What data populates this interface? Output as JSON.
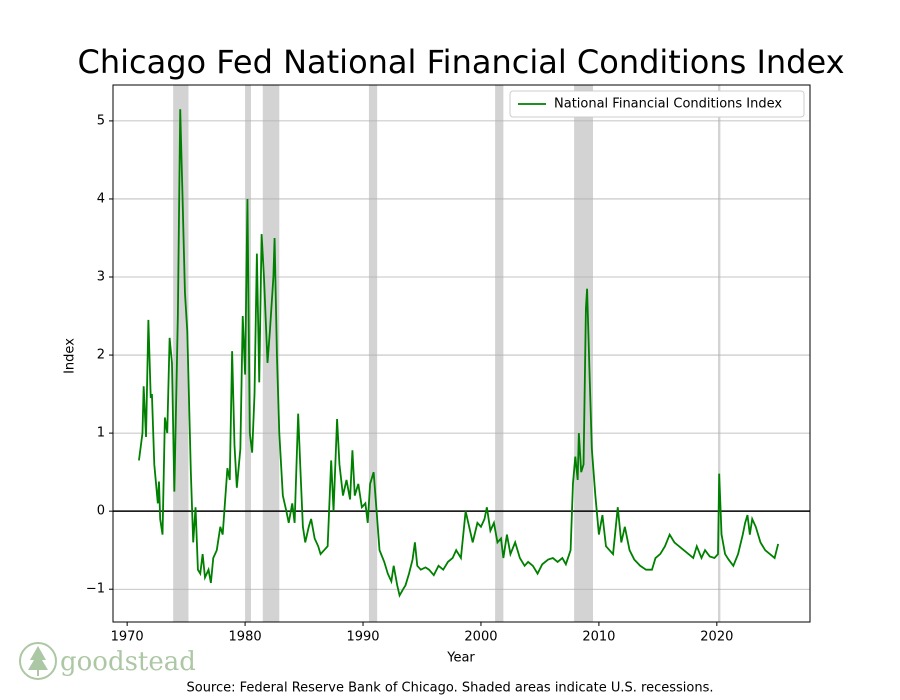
{
  "chart_data": {
    "type": "line",
    "title": "Chicago Fed National Financial Conditions Index",
    "xlabel": "Year",
    "ylabel": "Index",
    "source": "Source: Federal Reserve Bank of Chicago. Shaded areas indicate U.S. recessions.",
    "logo_text": "goodstead",
    "xlim": [
      1968.8,
      2027.9
    ],
    "ylim": [
      -1.42,
      5.46
    ],
    "xticks": [
      1970,
      1980,
      1990,
      2000,
      2010,
      2020
    ],
    "yticks": [
      {
        "value": -1,
        "label": "−1"
      },
      0,
      1,
      2,
      3,
      4,
      5
    ],
    "grid": true,
    "legend": "upper right",
    "zero_line": true,
    "recession_color": "#d3d3d3",
    "recessions": [
      [
        1973.9,
        1975.2
      ],
      [
        1980.0,
        1980.5
      ],
      [
        1981.5,
        1982.9
      ],
      [
        1990.5,
        1991.2
      ],
      [
        2001.2,
        2001.9
      ],
      [
        2007.9,
        2009.5
      ],
      [
        2020.1,
        2020.3
      ]
    ],
    "x": [
      1971.0,
      1971.3,
      1971.4,
      1971.6,
      1971.8,
      1972.0,
      1972.1,
      1972.3,
      1972.6,
      1972.7,
      1972.8,
      1973.0,
      1973.2,
      1973.4,
      1973.6,
      1973.8,
      1974.0,
      1974.3,
      1974.5,
      1974.7,
      1974.9,
      1975.1,
      1975.4,
      1975.6,
      1975.8,
      1976.0,
      1976.2,
      1976.4,
      1976.6,
      1976.9,
      1977.1,
      1977.3,
      1977.6,
      1977.9,
      1978.1,
      1978.5,
      1978.7,
      1978.9,
      1979.1,
      1979.3,
      1979.6,
      1979.8,
      1980.0,
      1980.2,
      1980.4,
      1980.6,
      1980.8,
      1981.0,
      1981.2,
      1981.4,
      1981.6,
      1981.9,
      1982.1,
      1982.4,
      1982.5,
      1982.7,
      1982.9,
      1983.2,
      1983.5,
      1983.7,
      1984.0,
      1984.2,
      1984.5,
      1984.7,
      1984.9,
      1985.1,
      1985.4,
      1985.6,
      1985.9,
      1986.2,
      1986.4,
      1986.7,
      1987.0,
      1987.3,
      1987.5,
      1987.8,
      1988.0,
      1988.3,
      1988.6,
      1988.9,
      1989.1,
      1989.3,
      1989.6,
      1989.9,
      1990.2,
      1990.4,
      1990.6,
      1990.9,
      1991.1,
      1991.4,
      1991.8,
      1992.1,
      1992.4,
      1992.6,
      1992.9,
      1993.1,
      1993.4,
      1993.6,
      1993.9,
      1994.2,
      1994.4,
      1994.6,
      1994.9,
      1995.3,
      1995.6,
      1996.0,
      1996.4,
      1996.8,
      1997.2,
      1997.6,
      1997.9,
      1998.3,
      1998.7,
      1999.0,
      1999.3,
      1999.7,
      2000.0,
      2000.3,
      2000.5,
      2000.8,
      2001.1,
      2001.4,
      2001.7,
      2001.9,
      2002.2,
      2002.5,
      2002.9,
      2003.3,
      2003.7,
      2004.0,
      2004.4,
      2004.8,
      2005.2,
      2005.7,
      2006.1,
      2006.5,
      2006.9,
      2007.2,
      2007.6,
      2007.8,
      2008.0,
      2008.2,
      2008.3,
      2008.5,
      2008.7,
      2008.9,
      2009.0,
      2009.2,
      2009.4,
      2009.7,
      2010.0,
      2010.3,
      2010.6,
      2010.9,
      2011.2,
      2011.6,
      2011.9,
      2012.2,
      2012.6,
      2013.0,
      2013.5,
      2014.0,
      2014.5,
      2014.8,
      2015.2,
      2015.6,
      2016.0,
      2016.4,
      2016.8,
      2017.2,
      2017.6,
      2018.0,
      2018.3,
      2018.7,
      2019.0,
      2019.4,
      2019.8,
      2020.1,
      2020.2,
      2020.4,
      2020.7,
      2021.0,
      2021.4,
      2021.8,
      2022.2,
      2022.4,
      2022.6,
      2022.8,
      2023.0,
      2023.3,
      2023.7,
      2024.1,
      2024.5,
      2024.9,
      2025.2
    ],
    "series": [
      {
        "name": "National Financial Conditions Index",
        "color": "#008000",
        "values": [
          0.65,
          1.0,
          1.6,
          0.95,
          2.45,
          1.45,
          1.5,
          0.6,
          0.1,
          0.38,
          -0.1,
          -0.3,
          1.2,
          1.0,
          2.22,
          1.9,
          0.25,
          2.5,
          5.15,
          4.0,
          2.8,
          2.3,
          0.5,
          -0.4,
          0.05,
          -0.75,
          -0.8,
          -0.55,
          -0.85,
          -0.75,
          -0.92,
          -0.6,
          -0.5,
          -0.2,
          -0.3,
          0.55,
          0.4,
          2.05,
          0.85,
          0.3,
          0.8,
          2.5,
          1.75,
          4.0,
          1.0,
          0.75,
          1.5,
          3.3,
          1.65,
          3.55,
          3.0,
          1.9,
          2.3,
          3.0,
          3.5,
          2.0,
          1.0,
          0.2,
          0.0,
          -0.15,
          0.1,
          -0.15,
          1.25,
          0.5,
          -0.2,
          -0.4,
          -0.2,
          -0.1,
          -0.35,
          -0.45,
          -0.55,
          -0.5,
          -0.45,
          0.65,
          0.0,
          1.18,
          0.6,
          0.2,
          0.4,
          0.15,
          0.78,
          0.2,
          0.35,
          0.05,
          0.1,
          -0.15,
          0.35,
          0.5,
          0.1,
          -0.5,
          -0.65,
          -0.8,
          -0.9,
          -0.7,
          -0.95,
          -1.08,
          -1.0,
          -0.95,
          -0.8,
          -0.62,
          -0.4,
          -0.7,
          -0.75,
          -0.72,
          -0.75,
          -0.82,
          -0.7,
          -0.75,
          -0.65,
          -0.6,
          -0.5,
          -0.6,
          0.0,
          -0.2,
          -0.4,
          -0.15,
          -0.2,
          -0.1,
          0.05,
          -0.25,
          -0.15,
          -0.4,
          -0.35,
          -0.6,
          -0.3,
          -0.55,
          -0.4,
          -0.6,
          -0.7,
          -0.65,
          -0.7,
          -0.8,
          -0.68,
          -0.62,
          -0.6,
          -0.65,
          -0.6,
          -0.68,
          -0.5,
          0.35,
          0.7,
          0.4,
          1.0,
          0.5,
          0.6,
          2.6,
          2.85,
          1.8,
          0.8,
          0.2,
          -0.3,
          -0.05,
          -0.45,
          -0.5,
          -0.55,
          0.05,
          -0.4,
          -0.2,
          -0.5,
          -0.62,
          -0.7,
          -0.75,
          -0.75,
          -0.6,
          -0.55,
          -0.45,
          -0.3,
          -0.4,
          -0.45,
          -0.5,
          -0.55,
          -0.6,
          -0.45,
          -0.6,
          -0.5,
          -0.58,
          -0.6,
          -0.55,
          0.48,
          -0.3,
          -0.55,
          -0.62,
          -0.7,
          -0.55,
          -0.3,
          -0.15,
          -0.05,
          -0.3,
          -0.1,
          -0.2,
          -0.4,
          -0.5,
          -0.55,
          -0.6,
          -0.42
        ]
      }
    ]
  }
}
